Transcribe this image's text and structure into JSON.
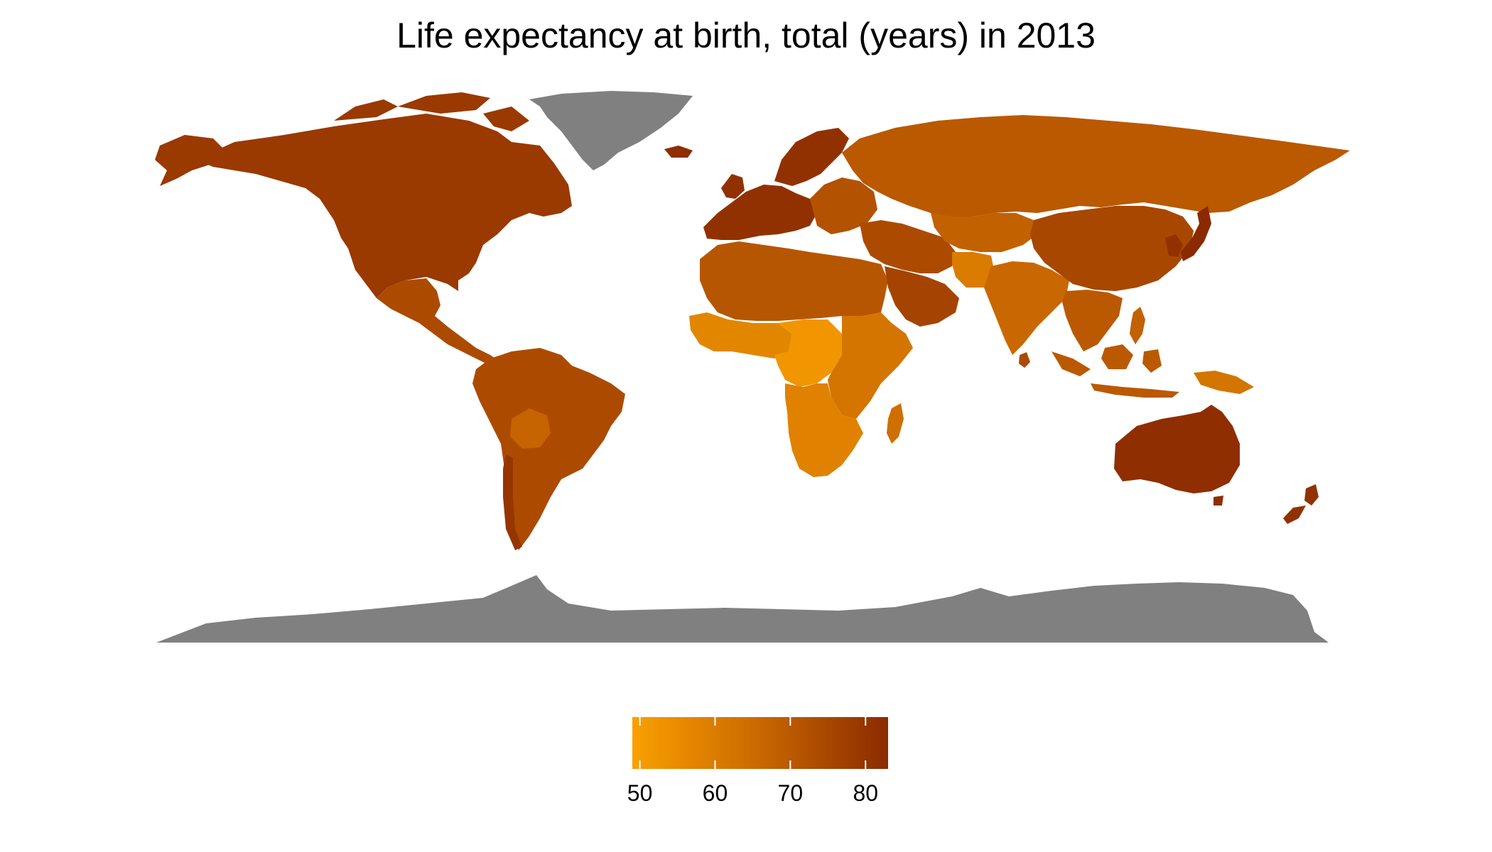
{
  "map": {
    "title": "Life expectancy at birth, total (years) in 2013",
    "colors": {
      "scale_low": "#F9A000",
      "scale_mid": "#C96800",
      "scale_high": "#8B2A00",
      "no_data": "#808080",
      "background": "#FFFFFF"
    },
    "legend": {
      "placement": "bottom",
      "range": [
        49,
        83
      ],
      "ticks": [
        {
          "value": 50,
          "label": "50"
        },
        {
          "value": 60,
          "label": "60"
        },
        {
          "value": 70,
          "label": "70"
        },
        {
          "value": 80,
          "label": "80"
        }
      ]
    },
    "regions": [
      {
        "id": "north-america",
        "value": 79
      },
      {
        "id": "alaska",
        "value": 79
      },
      {
        "id": "greenland",
        "value": null
      },
      {
        "id": "iceland",
        "value": 82
      },
      {
        "id": "central-america",
        "value": 74
      },
      {
        "id": "south-america",
        "value": 74
      },
      {
        "id": "bolivia",
        "value": 67
      },
      {
        "id": "chile",
        "value": 80
      },
      {
        "id": "western-europe",
        "value": 81
      },
      {
        "id": "scandinavia",
        "value": 81
      },
      {
        "id": "eastern-europe",
        "value": 72
      },
      {
        "id": "russia",
        "value": 70
      },
      {
        "id": "north-africa",
        "value": 71
      },
      {
        "id": "west-africa",
        "value": 57
      },
      {
        "id": "central-africa",
        "value": 52
      },
      {
        "id": "east-africa",
        "value": 62
      },
      {
        "id": "southern-africa",
        "value": 58
      },
      {
        "id": "madagascar",
        "value": 64
      },
      {
        "id": "middle-east",
        "value": 74
      },
      {
        "id": "arabian-peninsula",
        "value": 76
      },
      {
        "id": "central-asia",
        "value": 68
      },
      {
        "id": "afghanistan",
        "value": 60
      },
      {
        "id": "india",
        "value": 66
      },
      {
        "id": "sri-lanka",
        "value": 74
      },
      {
        "id": "china",
        "value": 75
      },
      {
        "id": "southeast-asia",
        "value": 70
      },
      {
        "id": "korea",
        "value": 81
      },
      {
        "id": "japan",
        "value": 83
      },
      {
        "id": "indonesia",
        "value": 70
      },
      {
        "id": "philippines",
        "value": 68
      },
      {
        "id": "papua-new-guinea",
        "value": 62
      },
      {
        "id": "australia",
        "value": 82
      },
      {
        "id": "new-zealand",
        "value": 81
      },
      {
        "id": "antarctica",
        "value": null
      }
    ]
  }
}
